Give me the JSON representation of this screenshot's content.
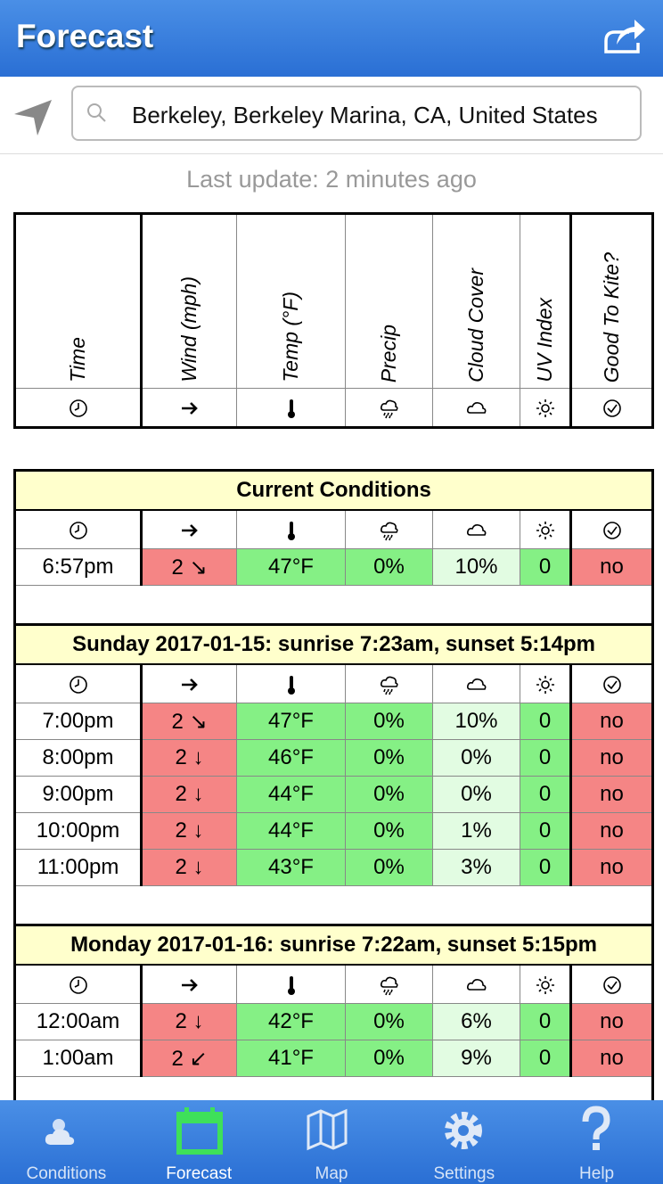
{
  "header": {
    "title": "Forecast"
  },
  "search": {
    "query": "Berkeley, Berkeley Marina, CA, United States"
  },
  "status": "Last update: 2 minutes ago",
  "columns": [
    "Time",
    "Wind (mph)",
    "Temp (°F)",
    "Precip",
    "Cloud Cover",
    "UV Index",
    "Good To Kite?"
  ],
  "sections": [
    {
      "title": "Current Conditions",
      "rows": [
        [
          "6:57pm",
          "2 ↘",
          "47°F",
          "0%",
          "10%",
          "0",
          "no"
        ]
      ]
    },
    {
      "title": "Sunday 2017-01-15: sunrise 7:23am, sunset 5:14pm",
      "rows": [
        [
          "7:00pm",
          "2 ↘",
          "47°F",
          "0%",
          "10%",
          "0",
          "no"
        ],
        [
          "8:00pm",
          "2 ↓",
          "46°F",
          "0%",
          "0%",
          "0",
          "no"
        ],
        [
          "9:00pm",
          "2 ↓",
          "44°F",
          "0%",
          "0%",
          "0",
          "no"
        ],
        [
          "10:00pm",
          "2 ↓",
          "44°F",
          "0%",
          "1%",
          "0",
          "no"
        ],
        [
          "11:00pm",
          "2 ↓",
          "43°F",
          "0%",
          "3%",
          "0",
          "no"
        ]
      ]
    },
    {
      "title": "Monday 2017-01-16: sunrise 7:22am, sunset 5:15pm",
      "rows": [
        [
          "12:00am",
          "2 ↓",
          "42°F",
          "0%",
          "6%",
          "0",
          "no"
        ],
        [
          "1:00am",
          "2 ↙",
          "41°F",
          "0%",
          "9%",
          "0",
          "no"
        ]
      ]
    }
  ],
  "tabs": [
    "Conditions",
    "Forecast",
    "Map",
    "Settings",
    "Help"
  ]
}
